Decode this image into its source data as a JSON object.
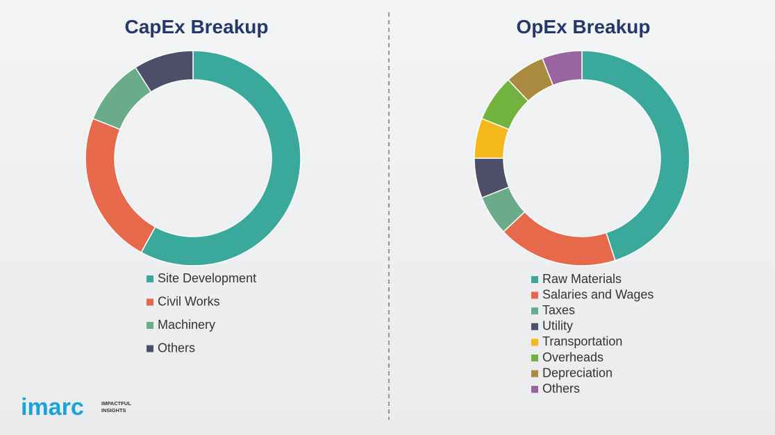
{
  "chart_data": [
    {
      "type": "donut",
      "title": "CapEx Breakup",
      "categories": [
        "Site Development",
        "Civil Works",
        "Machinery",
        "Others"
      ],
      "values": [
        58,
        23,
        10,
        9
      ],
      "colors": [
        "#3aa89a",
        "#e5694a",
        "#6aab8a",
        "#4d4f6a"
      ]
    },
    {
      "type": "donut",
      "title": "OpEx Breakup",
      "categories": [
        "Raw Materials",
        "Salaries and Wages",
        "Taxes",
        "Utility",
        "Transportation",
        "Overheads",
        "Depreciation",
        "Others"
      ],
      "values": [
        45,
        18,
        6,
        6,
        6,
        7,
        6,
        6
      ],
      "colors": [
        "#3aa89a",
        "#e5694a",
        "#6aab8a",
        "#4d4f6a",
        "#f5b81c",
        "#72b33f",
        "#a98a3e",
        "#9a64a0"
      ]
    }
  ],
  "logo": {
    "name": "imarc",
    "tagline": [
      "IMPACTFUL",
      "INSIGHTS"
    ]
  }
}
